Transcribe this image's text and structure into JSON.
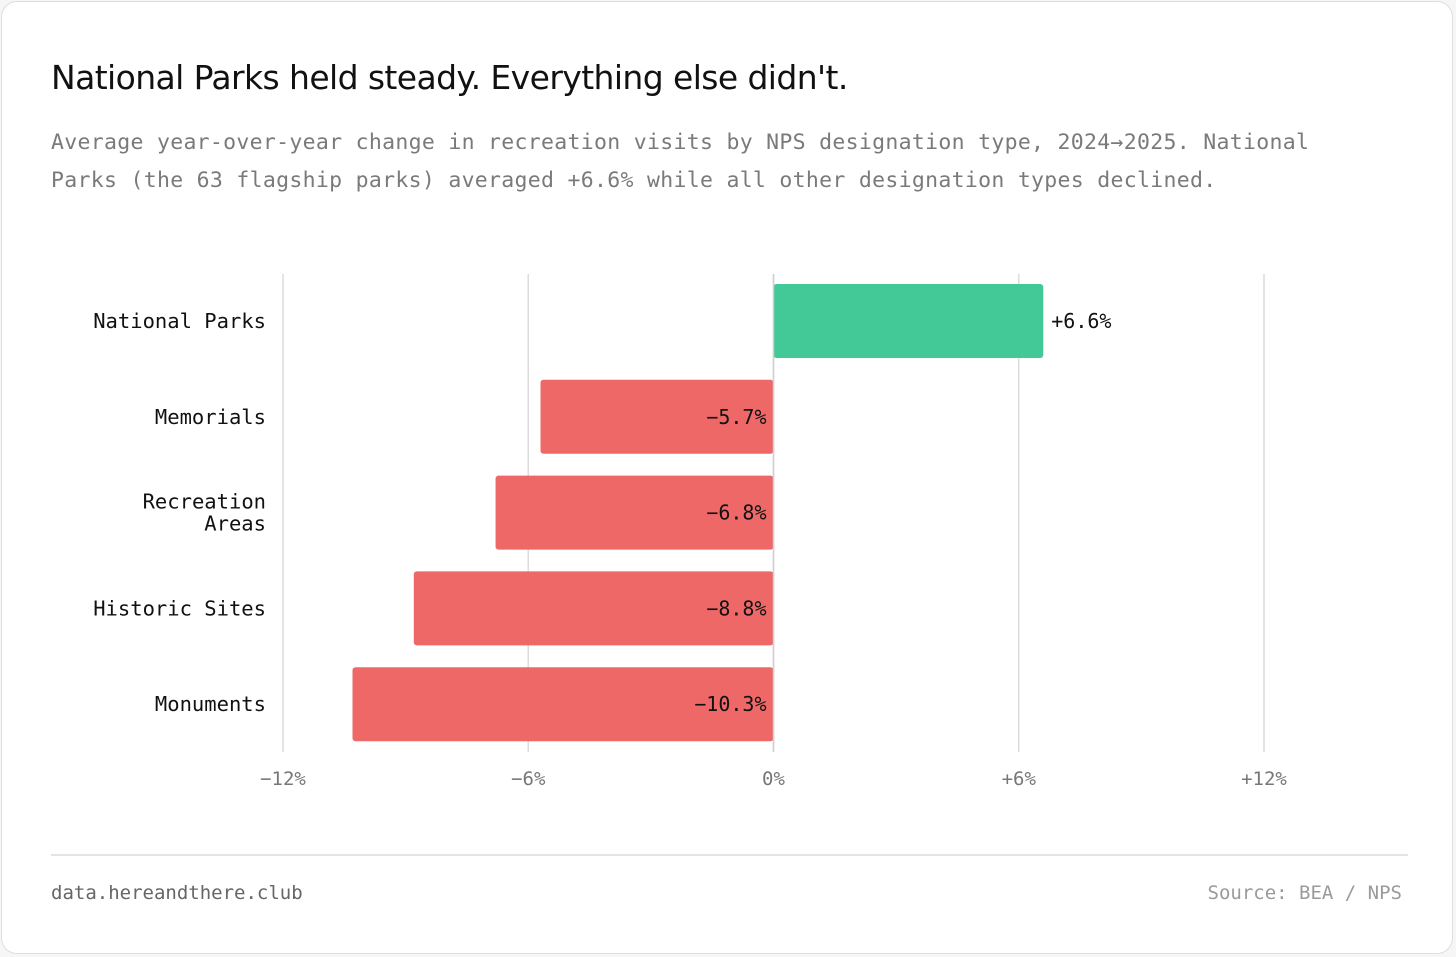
{
  "title": "National Parks held steady. Everything else didn't.",
  "subtitle": "Average year-over-year change in recreation visits by NPS designation type, 2024→2025. National Parks (the 63 flagship parks) averaged +6.6% while all other designation types declined.",
  "footer": {
    "site": "data.hereandthere.club",
    "source": "Source: BEA / NPS"
  },
  "colors": {
    "positive": "#3fc795",
    "negative": "#ef6565",
    "grid": "#dcdcdc"
  },
  "chart_data": {
    "type": "bar",
    "orientation": "horizontal",
    "title": "National Parks held steady. Everything else didn't.",
    "xlabel": "",
    "ylabel": "",
    "xlim": [
      -12,
      12
    ],
    "ticks": [
      -12,
      -6,
      0,
      6,
      12
    ],
    "tick_labels": [
      "−12%",
      "−6%",
      "0%",
      "+6%",
      "+12%"
    ],
    "categories": [
      [
        "National Parks"
      ],
      [
        "Memorials"
      ],
      [
        "Recreation",
        "Areas"
      ],
      [
        "Historic Sites"
      ],
      [
        "Monuments"
      ]
    ],
    "values": [
      6.6,
      -5.7,
      -6.8,
      -8.8,
      -10.3
    ],
    "value_labels": [
      "+6.6%",
      "−5.7%",
      "−6.8%",
      "−8.8%",
      "−10.3%"
    ],
    "grid": true
  }
}
